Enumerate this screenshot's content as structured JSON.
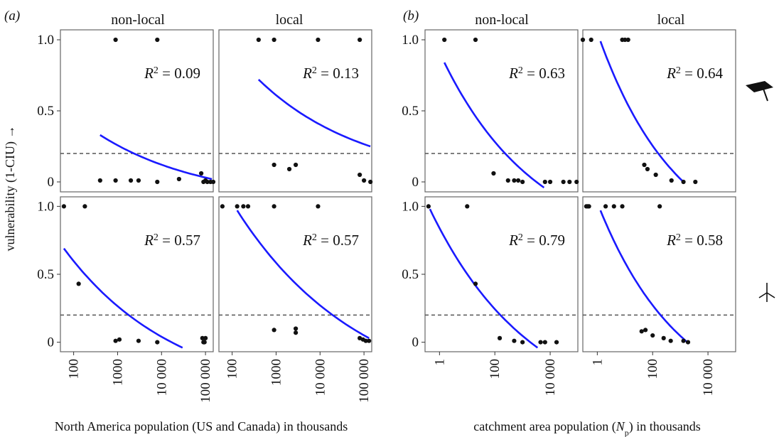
{
  "figure": {
    "ylabel": "vulnerability (1-CIU) →",
    "icons": {
      "top_row": "mortarboard-icon",
      "bottom_row": "wind-turbine-icon"
    }
  },
  "chart_data": [
    {
      "type": "scatter",
      "group": "(a)",
      "facet_col": "non-local",
      "row": "top",
      "annotation": "R² = 0.09",
      "r2_prefix": "R",
      "r2_sup": "2",
      "r2_value": " = 0.09",
      "x_scale": "log",
      "xlim": [
        50,
        150000
      ],
      "ylim": [
        -0.07,
        1.07
      ],
      "x_ticks": [
        "100",
        "1000",
        "10 000",
        "100 000"
      ],
      "y_ticks": [
        "0",
        "0.5",
        "1.0"
      ],
      "threshold_y": 0.2,
      "points": [
        [
          900,
          1.0
        ],
        [
          8000,
          1.0
        ],
        [
          400,
          0.01
        ],
        [
          900,
          0.01
        ],
        [
          2000,
          0.01
        ],
        [
          3000,
          0.01
        ],
        [
          8000,
          0.0
        ],
        [
          25000,
          0.02
        ],
        [
          80000,
          0.06
        ],
        [
          90000,
          0.0
        ],
        [
          100000,
          0.01
        ],
        [
          110000,
          0.0
        ],
        [
          130000,
          0.0
        ],
        [
          150000,
          0.0
        ]
      ],
      "fit": [
        [
          400,
          0.33
        ],
        [
          140000,
          0.02
        ]
      ]
    },
    {
      "type": "scatter",
      "group": "(a)",
      "facet_col": "local",
      "row": "top",
      "annotation": "R² = 0.13",
      "r2_prefix": "R",
      "r2_sup": "2",
      "r2_value": " = 0.13",
      "x_scale": "log",
      "xlim": [
        50,
        150000
      ],
      "ylim": [
        -0.07,
        1.07
      ],
      "x_ticks": [
        "100",
        "1000",
        "10 000",
        "100 000"
      ],
      "y_ticks": [
        "0",
        "0.5",
        "1.0"
      ],
      "threshold_y": 0.2,
      "points": [
        [
          400,
          1.0
        ],
        [
          900,
          1.0
        ],
        [
          9000,
          1.0
        ],
        [
          80000,
          1.0
        ],
        [
          900,
          0.12
        ],
        [
          2000,
          0.09
        ],
        [
          2800,
          0.12
        ],
        [
          80000,
          0.05
        ],
        [
          100000,
          0.01
        ],
        [
          140000,
          0.0
        ]
      ],
      "fit": [
        [
          400,
          0.72
        ],
        [
          140000,
          0.25
        ]
      ]
    },
    {
      "type": "scatter",
      "group": "(a)",
      "facet_col": "non-local",
      "row": "bottom",
      "annotation": "R² = 0.57",
      "r2_prefix": "R",
      "r2_sup": "2",
      "r2_value": " = 0.57",
      "x_scale": "log",
      "xlim": [
        50,
        150000
      ],
      "ylim": [
        -0.07,
        1.07
      ],
      "x_ticks": [
        "100",
        "1000",
        "10 000",
        "100 000"
      ],
      "y_ticks": [
        "0",
        "0.5",
        "1.0"
      ],
      "threshold_y": 0.2,
      "points": [
        [
          60,
          1.0
        ],
        [
          180,
          1.0
        ],
        [
          130,
          0.43
        ],
        [
          900,
          0.01
        ],
        [
          1100,
          0.02
        ],
        [
          3000,
          0.01
        ],
        [
          8000,
          0.0
        ],
        [
          85000,
          0.03
        ],
        [
          90000,
          0.0
        ],
        [
          100000,
          0.03
        ],
        [
          95000,
          0.0
        ]
      ],
      "fit": [
        [
          60,
          0.69
        ],
        [
          30000,
          -0.04
        ]
      ]
    },
    {
      "type": "scatter",
      "group": "(a)",
      "facet_col": "local",
      "row": "bottom",
      "annotation": "R² = 0.57",
      "r2_prefix": "R",
      "r2_sup": "2",
      "r2_value": " = 0.57",
      "x_scale": "log",
      "xlim": [
        50,
        150000
      ],
      "ylim": [
        -0.07,
        1.07
      ],
      "x_ticks": [
        "100",
        "1000",
        "10 000",
        "100 000"
      ],
      "y_ticks": [
        "0",
        "0.5",
        "1.0"
      ],
      "threshold_y": 0.2,
      "points": [
        [
          60,
          1.0
        ],
        [
          130,
          1.0
        ],
        [
          180,
          1.0
        ],
        [
          230,
          1.0
        ],
        [
          900,
          1.0
        ],
        [
          9000,
          1.0
        ],
        [
          900,
          0.09
        ],
        [
          2800,
          0.1
        ],
        [
          2800,
          0.07
        ],
        [
          80000,
          0.03
        ],
        [
          95000,
          0.02
        ],
        [
          110000,
          0.01
        ],
        [
          130000,
          0.01
        ]
      ],
      "fit": [
        [
          130,
          0.97
        ],
        [
          130000,
          0.03
        ]
      ]
    },
    {
      "type": "scatter",
      "group": "(b)",
      "facet_col": "non-local",
      "row": "top",
      "annotation": "R² = 0.63",
      "r2_prefix": "R",
      "r2_sup": "2",
      "r2_value": " = 0.63",
      "x_scale": "log",
      "xlim": [
        0.3,
        100000
      ],
      "ylim": [
        -0.07,
        1.07
      ],
      "x_ticks": [
        "1",
        "100",
        "10 000"
      ],
      "y_ticks": [
        "0",
        "0.5",
        "1.0"
      ],
      "threshold_y": 0.2,
      "points": [
        [
          1.5,
          1.0
        ],
        [
          20,
          1.0
        ],
        [
          90,
          0.06
        ],
        [
          300,
          0.01
        ],
        [
          500,
          0.01
        ],
        [
          700,
          0.01
        ],
        [
          1000,
          0.0
        ],
        [
          6500,
          0.0
        ],
        [
          10000,
          0.0
        ],
        [
          30000,
          0.0
        ],
        [
          50000,
          0.0
        ],
        [
          90000,
          0.0
        ]
      ],
      "fit": [
        [
          1.5,
          0.84
        ],
        [
          6000,
          -0.04
        ]
      ]
    },
    {
      "type": "scatter",
      "group": "(b)",
      "facet_col": "local",
      "row": "top",
      "annotation": "R² = 0.64",
      "r2_prefix": "R",
      "r2_sup": "2",
      "r2_value": " = 0.64",
      "x_scale": "log",
      "xlim": [
        0.3,
        100000
      ],
      "ylim": [
        -0.07,
        1.07
      ],
      "x_ticks": [
        "1",
        "100",
        "10 000"
      ],
      "y_ticks": [
        "0",
        "0.5",
        "1.0"
      ],
      "threshold_y": 0.2,
      "points": [
        [
          0.3,
          1.0
        ],
        [
          0.6,
          1.0
        ],
        [
          8,
          1.0
        ],
        [
          10,
          1.0
        ],
        [
          13,
          1.0
        ],
        [
          50,
          0.12
        ],
        [
          65,
          0.09
        ],
        [
          130,
          0.05
        ],
        [
          480,
          0.01
        ],
        [
          1300,
          0.0
        ],
        [
          3500,
          0.0
        ]
      ],
      "fit": [
        [
          1.3,
          0.99
        ],
        [
          1300,
          0.0
        ]
      ]
    },
    {
      "type": "scatter",
      "group": "(b)",
      "facet_col": "non-local",
      "row": "bottom",
      "annotation": "R² = 0.79",
      "r2_prefix": "R",
      "r2_sup": "2",
      "r2_value": " = 0.79",
      "x_scale": "log",
      "xlim": [
        0.3,
        100000
      ],
      "ylim": [
        -0.07,
        1.07
      ],
      "x_ticks": [
        "1",
        "100",
        "10 000"
      ],
      "y_ticks": [
        "0",
        "0.5",
        "1.0"
      ],
      "threshold_y": 0.2,
      "points": [
        [
          0.4,
          1.0
        ],
        [
          10,
          1.0
        ],
        [
          20,
          0.43
        ],
        [
          150,
          0.03
        ],
        [
          500,
          0.01
        ],
        [
          1000,
          0.0
        ],
        [
          4500,
          0.0
        ],
        [
          6500,
          0.0
        ],
        [
          17000,
          0.0
        ]
      ],
      "fit": [
        [
          0.45,
          0.98
        ],
        [
          3500,
          -0.04
        ]
      ]
    },
    {
      "type": "scatter",
      "group": "(b)",
      "facet_col": "local",
      "row": "bottom",
      "annotation": "R² = 0.58",
      "r2_prefix": "R",
      "r2_sup": "2",
      "r2_value": " = 0.58",
      "x_scale": "log",
      "xlim": [
        0.3,
        100000
      ],
      "ylim": [
        -0.07,
        1.07
      ],
      "x_ticks": [
        "1",
        "100",
        "10 000"
      ],
      "y_ticks": [
        "0",
        "0.5",
        "1.0"
      ],
      "threshold_y": 0.2,
      "points": [
        [
          0.4,
          1.0
        ],
        [
          0.45,
          1.0
        ],
        [
          0.5,
          1.0
        ],
        [
          2,
          1.0
        ],
        [
          4,
          1.0
        ],
        [
          8,
          1.0
        ],
        [
          180,
          1.0
        ],
        [
          40,
          0.08
        ],
        [
          55,
          0.09
        ],
        [
          100,
          0.05
        ],
        [
          250,
          0.03
        ],
        [
          450,
          0.01
        ],
        [
          1300,
          0.01
        ],
        [
          1900,
          0.0
        ]
      ],
      "fit": [
        [
          1.3,
          0.97
        ],
        [
          1800,
          0.0
        ]
      ]
    }
  ],
  "layout_groups": [
    {
      "letter": "(a)",
      "facets": [
        "non-local",
        "local"
      ],
      "xlabel": "North America population (US and Canada) in thousands"
    },
    {
      "letter": "(b)",
      "facets": [
        "non-local",
        "local"
      ],
      "xlabel_main": "catchment area population (",
      "xlabel_var": "N",
      "xlabel_sub": "p",
      "xlabel_end": ") in thousands"
    }
  ]
}
